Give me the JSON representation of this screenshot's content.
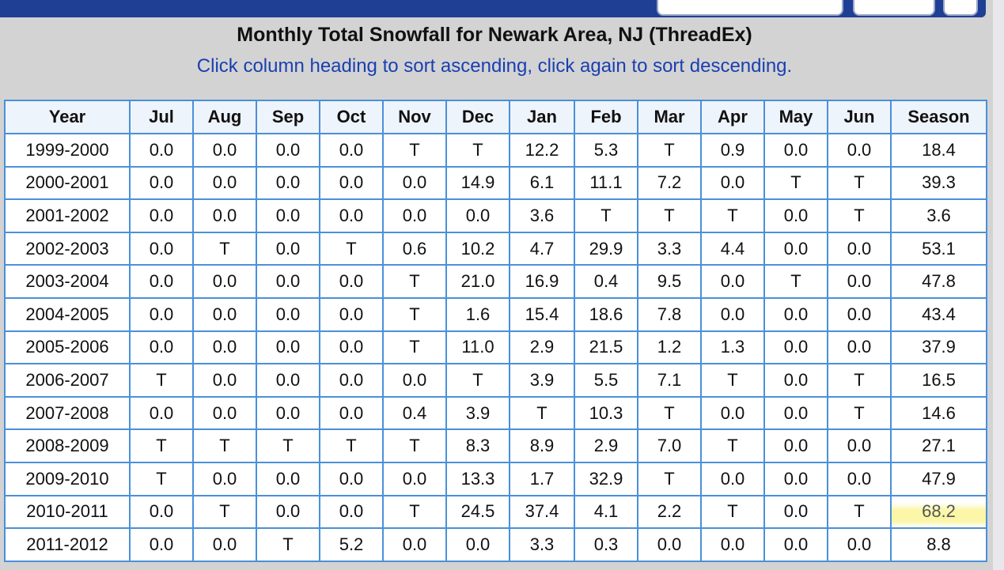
{
  "title": "Monthly Total Snowfall for Newark Area, NJ (ThreadEx)",
  "subtitle": "Click column heading to sort ascending, click again to sort descending.",
  "table": {
    "columns": [
      "Year",
      "Jul",
      "Aug",
      "Sep",
      "Oct",
      "Nov",
      "Dec",
      "Jan",
      "Feb",
      "Mar",
      "Apr",
      "May",
      "Jun",
      "Season"
    ],
    "rows": [
      [
        "1999-2000",
        "0.0",
        "0.0",
        "0.0",
        "0.0",
        "T",
        "T",
        "12.2",
        "5.3",
        "T",
        "0.9",
        "0.0",
        "0.0",
        "18.4"
      ],
      [
        "2000-2001",
        "0.0",
        "0.0",
        "0.0",
        "0.0",
        "0.0",
        "14.9",
        "6.1",
        "11.1",
        "7.2",
        "0.0",
        "T",
        "T",
        "39.3"
      ],
      [
        "2001-2002",
        "0.0",
        "0.0",
        "0.0",
        "0.0",
        "0.0",
        "0.0",
        "3.6",
        "T",
        "T",
        "T",
        "0.0",
        "T",
        "3.6"
      ],
      [
        "2002-2003",
        "0.0",
        "T",
        "0.0",
        "T",
        "0.6",
        "10.2",
        "4.7",
        "29.9",
        "3.3",
        "4.4",
        "0.0",
        "0.0",
        "53.1"
      ],
      [
        "2003-2004",
        "0.0",
        "0.0",
        "0.0",
        "0.0",
        "T",
        "21.0",
        "16.9",
        "0.4",
        "9.5",
        "0.0",
        "T",
        "0.0",
        "47.8"
      ],
      [
        "2004-2005",
        "0.0",
        "0.0",
        "0.0",
        "0.0",
        "T",
        "1.6",
        "15.4",
        "18.6",
        "7.8",
        "0.0",
        "0.0",
        "0.0",
        "43.4"
      ],
      [
        "2005-2006",
        "0.0",
        "0.0",
        "0.0",
        "0.0",
        "T",
        "11.0",
        "2.9",
        "21.5",
        "1.2",
        "1.3",
        "0.0",
        "0.0",
        "37.9"
      ],
      [
        "2006-2007",
        "T",
        "0.0",
        "0.0",
        "0.0",
        "0.0",
        "T",
        "3.9",
        "5.5",
        "7.1",
        "T",
        "0.0",
        "T",
        "16.5"
      ],
      [
        "2007-2008",
        "0.0",
        "0.0",
        "0.0",
        "0.0",
        "0.4",
        "3.9",
        "T",
        "10.3",
        "T",
        "0.0",
        "0.0",
        "T",
        "14.6"
      ],
      [
        "2008-2009",
        "T",
        "T",
        "T",
        "T",
        "T",
        "8.3",
        "8.9",
        "2.9",
        "7.0",
        "T",
        "0.0",
        "0.0",
        "27.1"
      ],
      [
        "2009-2010",
        "T",
        "0.0",
        "0.0",
        "0.0",
        "0.0",
        "13.3",
        "1.7",
        "32.9",
        "T",
        "0.0",
        "0.0",
        "0.0",
        "47.9"
      ],
      [
        "2010-2011",
        "0.0",
        "T",
        "0.0",
        "0.0",
        "T",
        "24.5",
        "37.4",
        "4.1",
        "2.2",
        "T",
        "0.0",
        "T",
        "68.2"
      ],
      [
        "2011-2012",
        "0.0",
        "0.0",
        "T",
        "5.2",
        "0.0",
        "0.0",
        "3.3",
        "0.3",
        "0.0",
        "0.0",
        "0.0",
        "0.0",
        "8.8"
      ]
    ]
  }
}
